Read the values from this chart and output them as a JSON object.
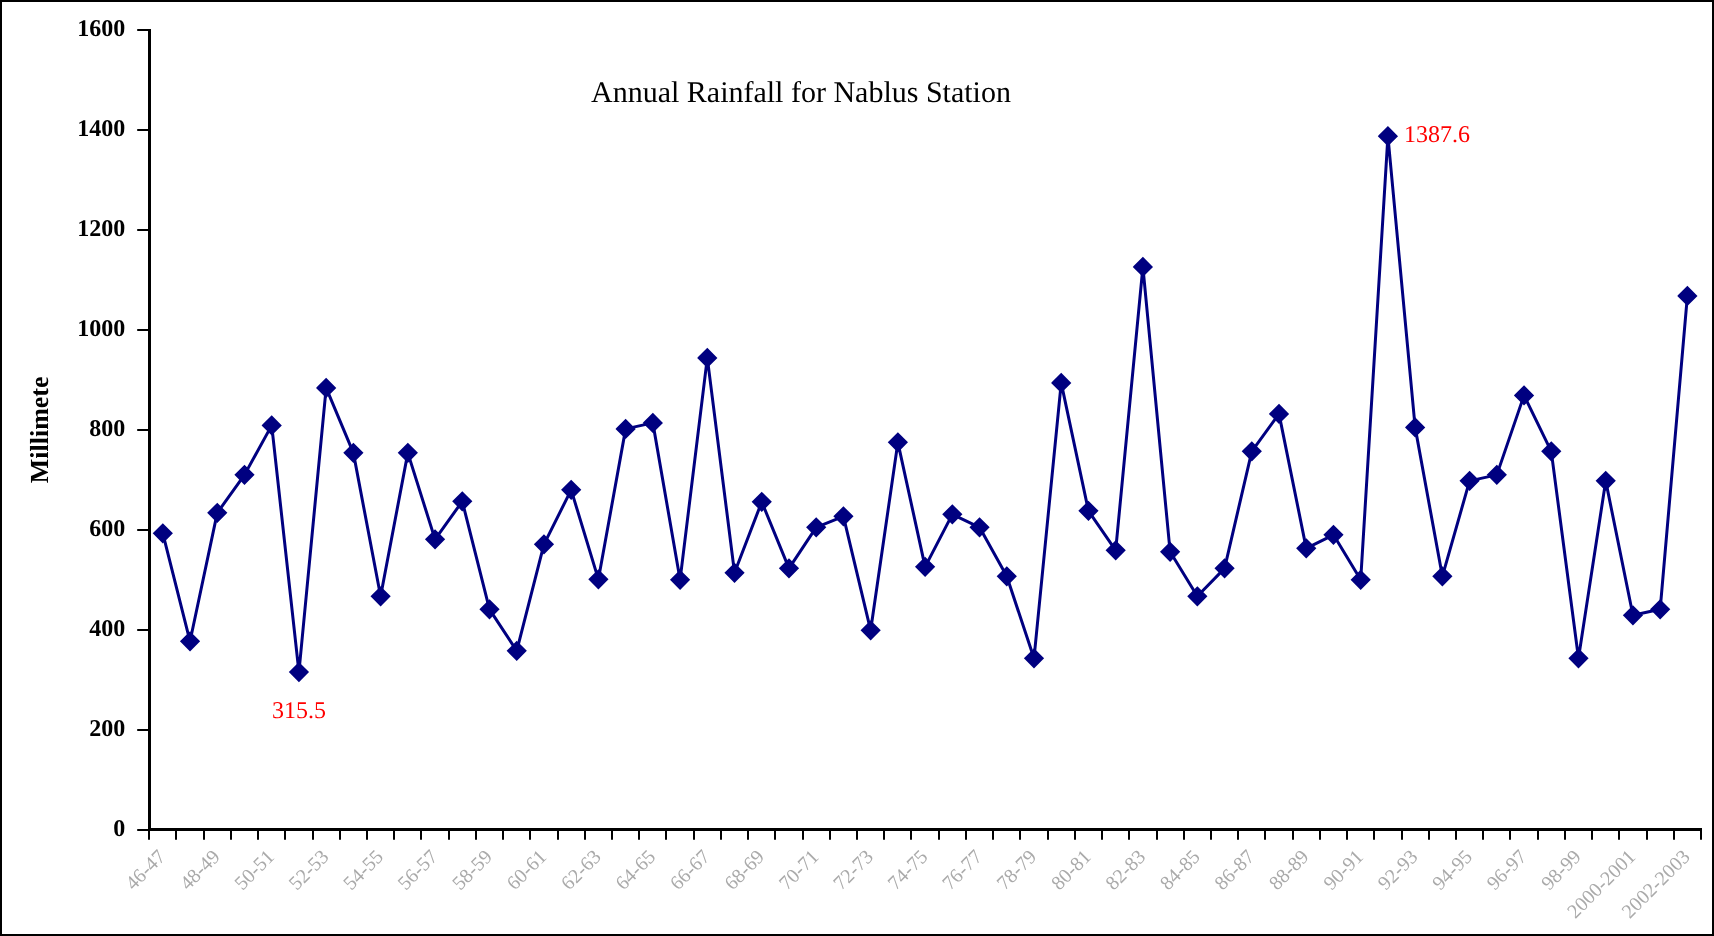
{
  "chart_data": {
    "type": "line",
    "title": "Annual Rainfall for Nablus Station",
    "ylabel": "Millimete",
    "categories": [
      "46-47",
      null,
      "48-49",
      null,
      "50-51",
      null,
      "52-53",
      null,
      "54-55",
      null,
      "56-57",
      null,
      "58-59",
      null,
      "60-61",
      null,
      "62-63",
      null,
      "64-65",
      null,
      "66-67",
      null,
      "68-69",
      null,
      "70-71",
      null,
      "72-73",
      null,
      "74-75",
      null,
      "76-77",
      null,
      "78-79",
      null,
      "80-81",
      null,
      "82-83",
      null,
      "84-85",
      null,
      "86-87",
      null,
      "88-89",
      null,
      "90-91",
      null,
      "92-93",
      null,
      "94-95",
      null,
      "96-97",
      null,
      "98-99",
      null,
      "2000-2001",
      null,
      "2002-2003"
    ],
    "series": [
      {
        "color": "#000080",
        "values": [
          593,
          377,
          634,
          710,
          809,
          315.5,
          884,
          754,
          467,
          754,
          581,
          657,
          441,
          358,
          571,
          680,
          501,
          802,
          814,
          500,
          944,
          514,
          656,
          523,
          605,
          627,
          399,
          775,
          526,
          631,
          605,
          507,
          343,
          894,
          638,
          559,
          1126,
          556,
          467,
          523,
          757,
          832,
          563,
          590,
          500,
          1387.6,
          805,
          507,
          698,
          710,
          869,
          757,
          343,
          698,
          429,
          441,
          1068
        ],
        "value_labels": [
          null,
          null,
          null,
          null,
          null,
          "315.5",
          null,
          null,
          null,
          null,
          null,
          null,
          null,
          null,
          null,
          null,
          null,
          null,
          null,
          null,
          null,
          null,
          null,
          null,
          null,
          null,
          null,
          null,
          null,
          null,
          null,
          null,
          null,
          null,
          null,
          null,
          null,
          null,
          null,
          null,
          null,
          null,
          null,
          null,
          null,
          "1387.6",
          null,
          null,
          null,
          null,
          null,
          null,
          null,
          null,
          null,
          null,
          null
        ]
      }
    ],
    "ylim": [
      0,
      1600
    ],
    "yticks": [
      0,
      200,
      400,
      600,
      800,
      1000,
      1200,
      1400,
      1600
    ],
    "grid": false,
    "legend": false,
    "marker": "diamond",
    "line_style": "solid"
  }
}
